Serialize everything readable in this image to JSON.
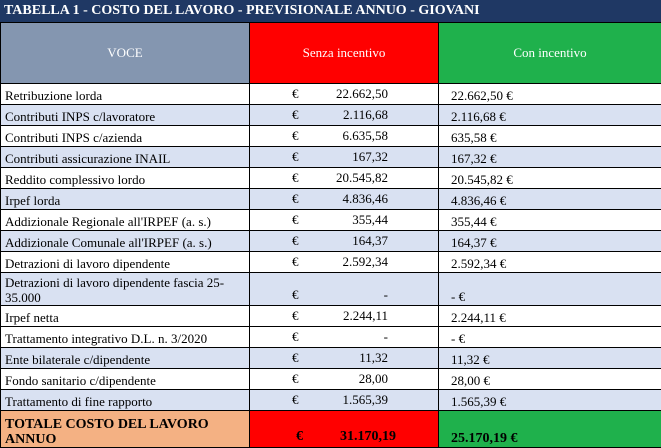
{
  "title": "TABELLA 1 - COSTO DEL LAVORO - PREVISIONALE ANNUO - GIOVANI",
  "header": {
    "voce": "VOCE",
    "senza": "Senza incentivo",
    "con": "Con incentivo"
  },
  "currency": "€",
  "rows": [
    {
      "voce": "Retribuzione lorda",
      "senza": "22.662,50",
      "con": "22.662,50 €"
    },
    {
      "voce": "Contributi INPS c/lavoratore",
      "senza": "2.116,68",
      "con": "2.116,68 €"
    },
    {
      "voce": "Contributi INPS c/azienda",
      "senza": "6.635,58",
      "con": "635,58 €"
    },
    {
      "voce": "Contributi assicurazione INAIL",
      "senza": "167,32",
      "con": "167,32 €"
    },
    {
      "voce": "Reddito complessivo lordo",
      "senza": "20.545,82",
      "con": "20.545,82 €"
    },
    {
      "voce": "Irpef lorda",
      "senza": "4.836,46",
      "con": "4.836,46 €"
    },
    {
      "voce": "Addizionale Regionale all'IRPEF (a. s.)",
      "senza": "355,44",
      "con": "355,44 €"
    },
    {
      "voce": "Addizionale Comunale all'IRPEF (a. s.)",
      "senza": "164,37",
      "con": "164,37 €"
    },
    {
      "voce": "Detrazioni di lavoro dipendente",
      "senza": "2.592,34",
      "con": "2.592,34 €"
    },
    {
      "voce": "Detrazioni di lavoro dipendente fascia 25-35.000",
      "senza": "-",
      "con": "-  €"
    },
    {
      "voce": "Irpef netta",
      "senza": "2.244,11",
      "con": "2.244,11 €"
    },
    {
      "voce": "Trattamento integrativo D.L. n. 3/2020",
      "senza": "-",
      "con": "-  €"
    },
    {
      "voce": "Ente bilaterale c/dipendente",
      "senza": "11,32",
      "con": "11,32 €"
    },
    {
      "voce": "Fondo sanitario c/dipendente",
      "senza": "28,00",
      "con": "28,00 €"
    },
    {
      "voce": "Trattamento di fine rapporto",
      "senza": "1.565,39",
      "con": "1.565,39 €"
    }
  ],
  "total": {
    "voce": "TOTALE COSTO DEL LAVORO ANNUO",
    "senza": "31.170,19",
    "con": "25.170,19 €"
  }
}
